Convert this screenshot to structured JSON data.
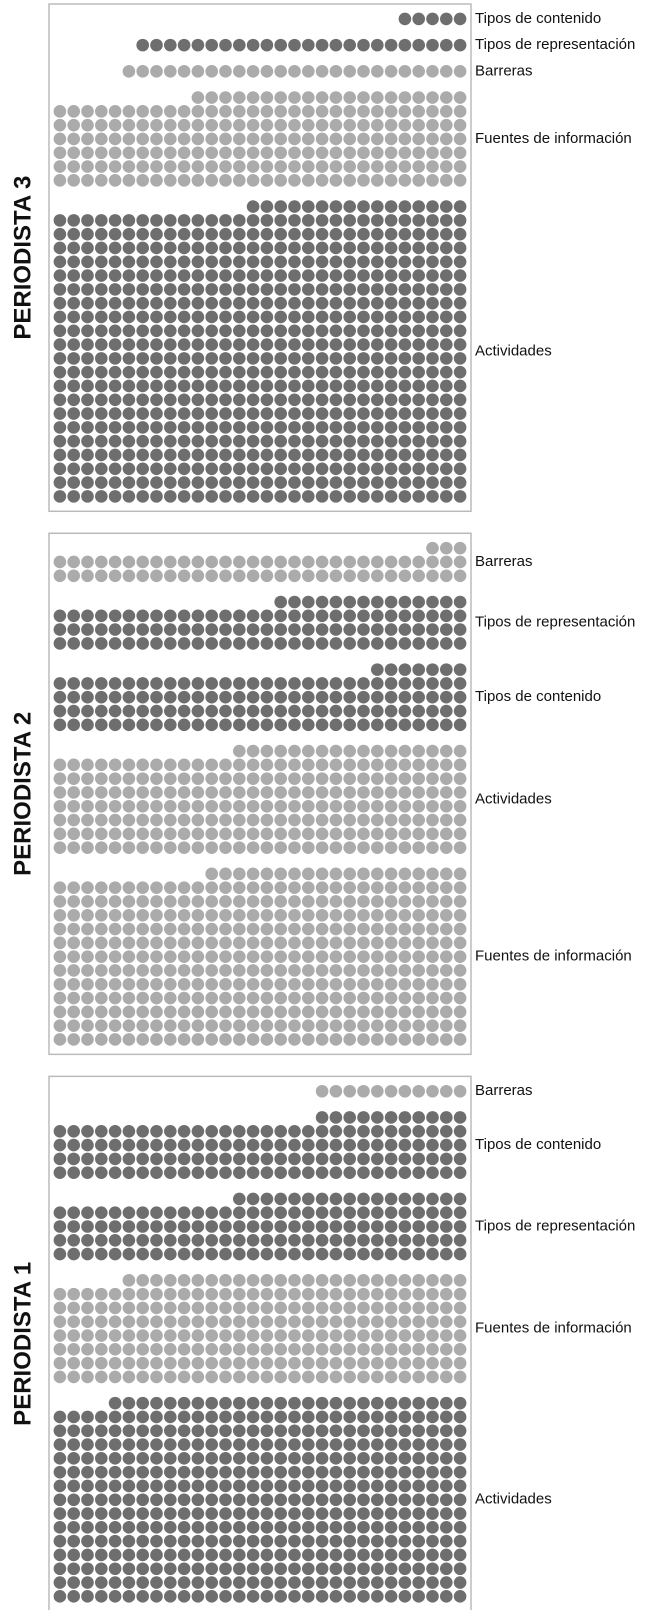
{
  "chart_data": [
    {
      "type": "waffle",
      "title": "PERIODISTA 3",
      "categories": [
        "Tipos de contenido",
        "Tipos de representación",
        "Barreras",
        "Fuentes de información",
        "Actividades"
      ],
      "values": [
        5,
        24,
        25,
        200,
        646
      ],
      "colors": [
        "#6e6e6e",
        "#6e6e6e",
        "#ababab",
        "#ababab",
        "#6e6e6e"
      ]
    },
    {
      "type": "waffle",
      "title": "PERIODISTA 2",
      "categories": [
        "Barreras",
        "Tipos de representación",
        "Tipos de contenido",
        "Actividades",
        "Fuentes de información"
      ],
      "values": [
        63,
        104,
        127,
        227,
        379
      ],
      "colors": [
        "#ababab",
        "#6e6e6e",
        "#6e6e6e",
        "#ababab",
        "#ababab"
      ]
    },
    {
      "type": "waffle",
      "title": "PERIODISTA 1",
      "categories": [
        "Barreras",
        "Tipos de contenido",
        "Tipos de representación",
        "Fuentes de información",
        "Actividades"
      ],
      "values": [
        11,
        131,
        137,
        235,
        446
      ],
      "colors": [
        "#ababab",
        "#6e6e6e",
        "#6e6e6e",
        "#ababab",
        "#6e6e6e"
      ]
    }
  ]
}
